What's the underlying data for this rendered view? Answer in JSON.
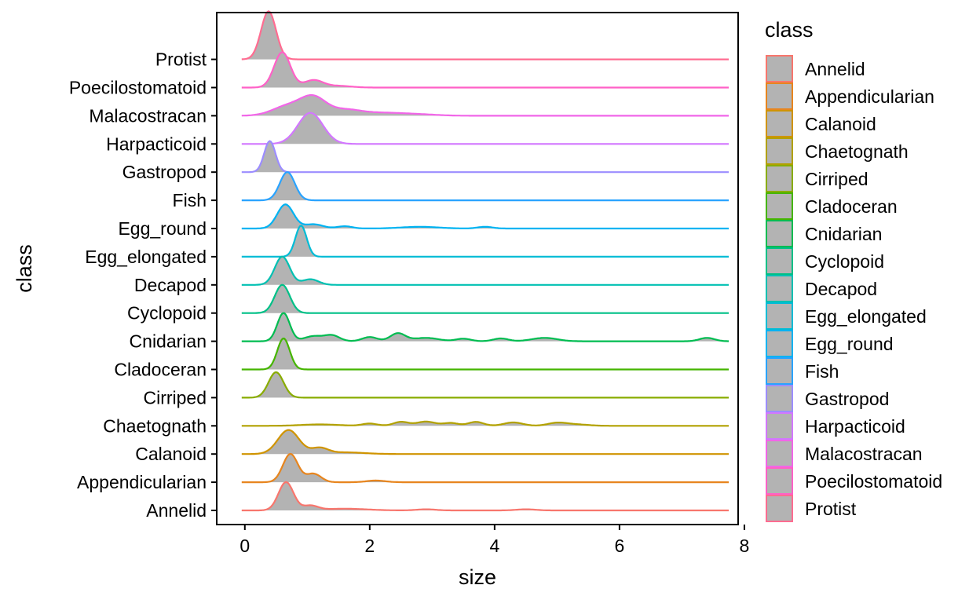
{
  "chart_data": {
    "type": "ridgeline",
    "xlabel": "size",
    "ylabel": "class",
    "xlim": [
      -0.45,
      7.9
    ],
    "x_ticks": [
      0,
      2,
      4,
      6,
      8
    ],
    "fill_color": "#B3B3B3",
    "legend": {
      "title": "class",
      "placement": "right"
    },
    "categories": [
      "Annelid",
      "Appendicularian",
      "Calanoid",
      "Chaetognath",
      "Cirriped",
      "Cladoceran",
      "Cnidarian",
      "Cyclopoid",
      "Decapod",
      "Egg_elongated",
      "Egg_round",
      "Fish",
      "Gastropod",
      "Harpacticoid",
      "Malacostracan",
      "Poecilostomatoid",
      "Protist"
    ],
    "series": [
      {
        "name": "Annelid",
        "color": "#F8766D",
        "x_range": [
          -0.05,
          7.75
        ],
        "peaks": [
          [
            0.66,
            0.12,
            1.0
          ],
          [
            1.05,
            0.12,
            0.16
          ],
          [
            1.6,
            0.35,
            0.06
          ],
          [
            2.9,
            0.15,
            0.04
          ],
          [
            4.5,
            0.15,
            0.04
          ]
        ]
      },
      {
        "name": "Appendicularian",
        "color": "#E7851E",
        "x_range": [
          -0.05,
          7.75
        ],
        "peaks": [
          [
            0.73,
            0.12,
            1.0
          ],
          [
            1.1,
            0.12,
            0.3
          ],
          [
            2.1,
            0.15,
            0.06
          ]
        ]
      },
      {
        "name": "Calanoid",
        "color": "#D09400",
        "x_range": [
          -0.05,
          7.75
        ],
        "peaks": [
          [
            0.7,
            0.17,
            0.85
          ],
          [
            1.2,
            0.13,
            0.2
          ],
          [
            1.6,
            0.3,
            0.06
          ]
        ]
      },
      {
        "name": "Chaetognath",
        "color": "#B2A100",
        "x_range": [
          -0.05,
          7.75
        ],
        "peaks": [
          [
            1.2,
            0.3,
            0.05
          ],
          [
            2.0,
            0.12,
            0.08
          ],
          [
            2.5,
            0.12,
            0.14
          ],
          [
            2.9,
            0.15,
            0.15
          ],
          [
            3.3,
            0.12,
            0.1
          ],
          [
            3.7,
            0.12,
            0.14
          ],
          [
            4.3,
            0.15,
            0.12
          ],
          [
            5.0,
            0.15,
            0.1
          ],
          [
            5.3,
            0.2,
            0.05
          ]
        ]
      },
      {
        "name": "Cirriped",
        "color": "#89AC00",
        "x_range": [
          -0.05,
          7.75
        ],
        "peaks": [
          [
            0.5,
            0.12,
            0.9
          ]
        ]
      },
      {
        "name": "Cladoceran",
        "color": "#45B500",
        "x_range": [
          -0.05,
          7.75
        ],
        "peaks": [
          [
            0.62,
            0.1,
            1.1
          ]
        ]
      },
      {
        "name": "Cnidarian",
        "color": "#00BC51",
        "x_range": [
          -0.05,
          7.75
        ],
        "peaks": [
          [
            0.62,
            0.1,
            1.0
          ],
          [
            1.1,
            0.15,
            0.18
          ],
          [
            1.4,
            0.12,
            0.2
          ],
          [
            2.0,
            0.12,
            0.15
          ],
          [
            2.45,
            0.12,
            0.28
          ],
          [
            2.9,
            0.2,
            0.12
          ],
          [
            3.5,
            0.12,
            0.09
          ],
          [
            4.1,
            0.12,
            0.1
          ],
          [
            4.8,
            0.2,
            0.12
          ],
          [
            7.4,
            0.12,
            0.12
          ]
        ]
      },
      {
        "name": "Cyclopoid",
        "color": "#00C087",
        "x_range": [
          -0.05,
          7.75
        ],
        "peaks": [
          [
            0.6,
            0.12,
            1.0
          ]
        ]
      },
      {
        "name": "Decapod",
        "color": "#00C0B2",
        "x_range": [
          -0.05,
          7.75
        ],
        "peaks": [
          [
            0.6,
            0.12,
            1.0
          ],
          [
            1.05,
            0.13,
            0.2
          ]
        ]
      },
      {
        "name": "Egg_elongated",
        "color": "#00BCD6",
        "x_range": [
          -0.05,
          7.75
        ],
        "peaks": [
          [
            0.9,
            0.09,
            1.1
          ]
        ]
      },
      {
        "name": "Egg_round",
        "color": "#00B3F2",
        "x_range": [
          -0.05,
          7.75
        ],
        "peaks": [
          [
            0.65,
            0.13,
            0.85
          ],
          [
            1.1,
            0.15,
            0.15
          ],
          [
            1.6,
            0.12,
            0.08
          ],
          [
            2.8,
            0.3,
            0.06
          ],
          [
            3.85,
            0.12,
            0.06
          ]
        ]
      },
      {
        "name": "Fish",
        "color": "#29A3FF",
        "x_range": [
          -0.05,
          7.75
        ],
        "peaks": [
          [
            0.68,
            0.12,
            1.0
          ]
        ]
      },
      {
        "name": "Gastropod",
        "color": "#9C8DFF",
        "x_range": [
          -0.05,
          7.75
        ],
        "peaks": [
          [
            0.4,
            0.09,
            1.1
          ]
        ]
      },
      {
        "name": "Harpacticoid",
        "color": "#D277FF",
        "x_range": [
          -0.05,
          7.75
        ],
        "peaks": [
          [
            1.05,
            0.2,
            1.1
          ]
        ]
      },
      {
        "name": "Malacostracan",
        "color": "#F166E8",
        "x_range": [
          -0.05,
          7.75
        ],
        "peaks": [
          [
            0.7,
            0.25,
            0.35
          ],
          [
            1.1,
            0.2,
            0.6
          ],
          [
            1.6,
            0.25,
            0.2
          ],
          [
            2.2,
            0.35,
            0.1
          ],
          [
            2.8,
            0.3,
            0.04
          ]
        ]
      },
      {
        "name": "Poecilostomatoid",
        "color": "#FF61C7",
        "x_range": [
          -0.05,
          7.75
        ],
        "peaks": [
          [
            0.6,
            0.13,
            1.25
          ],
          [
            1.1,
            0.15,
            0.26
          ],
          [
            1.5,
            0.2,
            0.06
          ]
        ]
      },
      {
        "name": "Protist",
        "color": "#FF6C91",
        "x_range": [
          -0.05,
          7.75
        ],
        "peaks": [
          [
            0.38,
            0.12,
            1.7
          ]
        ]
      }
    ]
  }
}
